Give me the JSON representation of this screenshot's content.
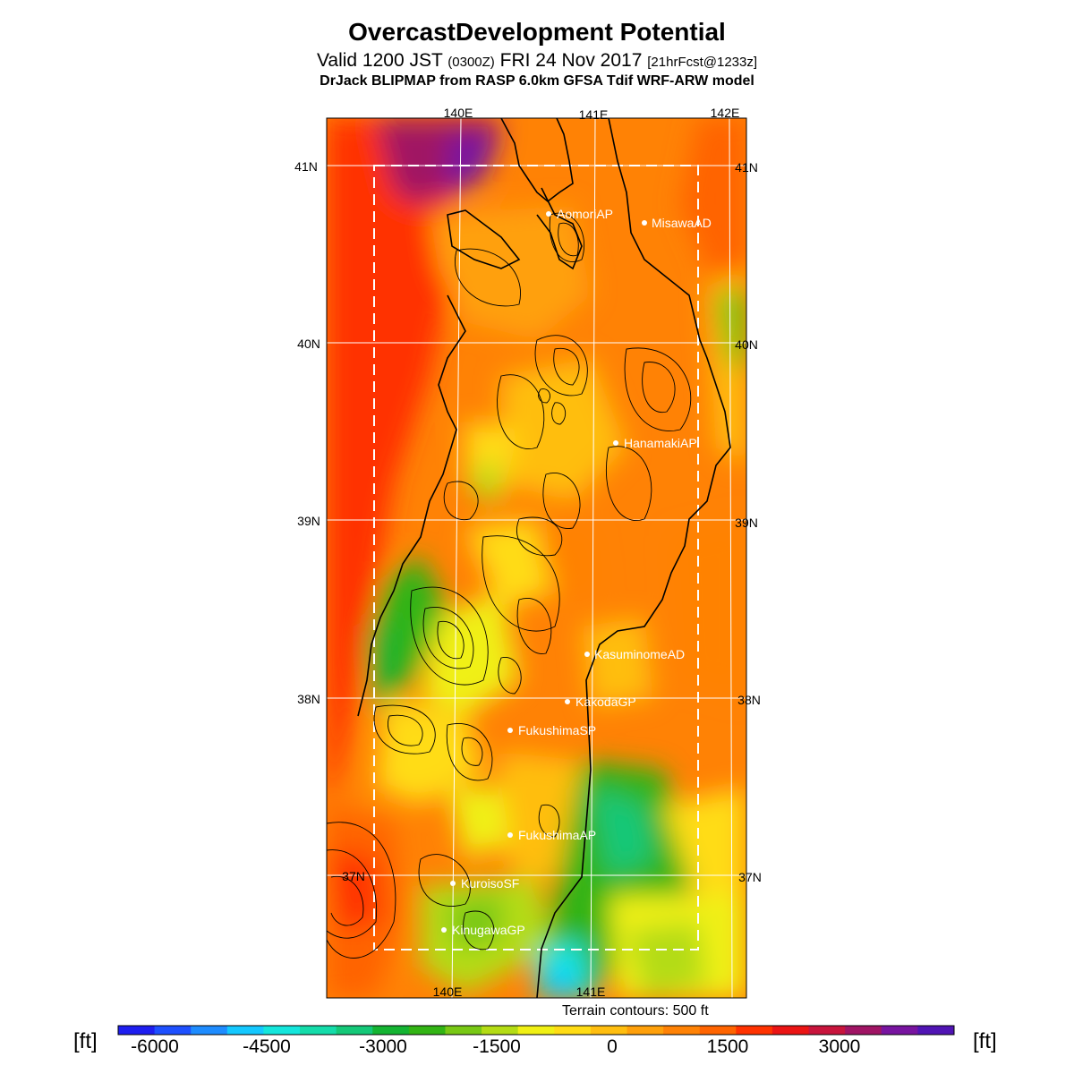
{
  "title": "OvercastDevelopment Potential",
  "subtitle": {
    "main": "Valid 1200 JST",
    "utc": "(0300Z)",
    "date": "FRI 24 Nov 2017",
    "forecast": "[21hrFcst@1233z]"
  },
  "model_line": "DrJack BLIPMAP from RASP 6.0km GFSA Tdif WRF-ARW model",
  "map": {
    "longitude_labels": [
      "140E",
      "141E",
      "142E"
    ],
    "latitude_labels": [
      "41N",
      "40N",
      "39N",
      "38N",
      "37N"
    ],
    "sites": [
      {
        "name": "AomoriAP"
      },
      {
        "name": "MisawaAD"
      },
      {
        "name": "HanamakiAP"
      },
      {
        "name": "KasuminomeAD"
      },
      {
        "name": "KakodaGP"
      },
      {
        "name": "FukushimaSP"
      },
      {
        "name": "FukushimaAP"
      },
      {
        "name": "KuroisoSF"
      },
      {
        "name": "KinugawaGP"
      }
    ],
    "terrain_note": "Terrain contours: 500 ft"
  },
  "colorbar": {
    "unit": "[ft]",
    "tick_labels": [
      "-6000",
      "-4500",
      "-3000",
      "-1500",
      "0",
      "1500",
      "3000"
    ],
    "colors": [
      "#1e1ef0",
      "#1e50ff",
      "#1e8cff",
      "#14c8ff",
      "#14e6dc",
      "#14dcaa",
      "#14c878",
      "#14b432",
      "#32b414",
      "#78c814",
      "#b4dc14",
      "#f0f014",
      "#ffdc14",
      "#ffbe0f",
      "#ffa00a",
      "#ff8205",
      "#ff6400",
      "#ff3200",
      "#eb1414",
      "#c8143c",
      "#a01464",
      "#7814a0",
      "#5014b4"
    ]
  }
}
